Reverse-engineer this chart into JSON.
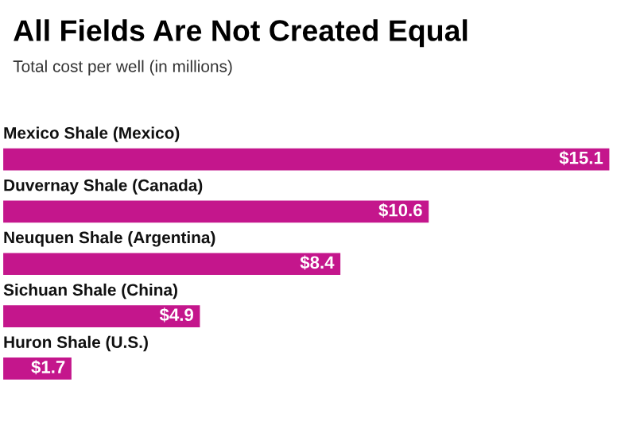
{
  "chart_data": {
    "type": "bar",
    "orientation": "horizontal",
    "title": "All Fields Are Not Created Equal",
    "subtitle": "Total cost per well (in millions)",
    "categories": [
      "Mexico Shale (Mexico)",
      "Duvernay Shale (Canada)",
      "Neuquen Shale (Argentina)",
      "Sichuan Shale (China)",
      "Huron Shale (U.S.)"
    ],
    "values": [
      15.1,
      10.6,
      8.4,
      4.9,
      1.7
    ],
    "value_labels": [
      "$15.1",
      "$10.6",
      "$8.4",
      "$4.9",
      "$1.7"
    ],
    "color": "#c4168c"
  }
}
